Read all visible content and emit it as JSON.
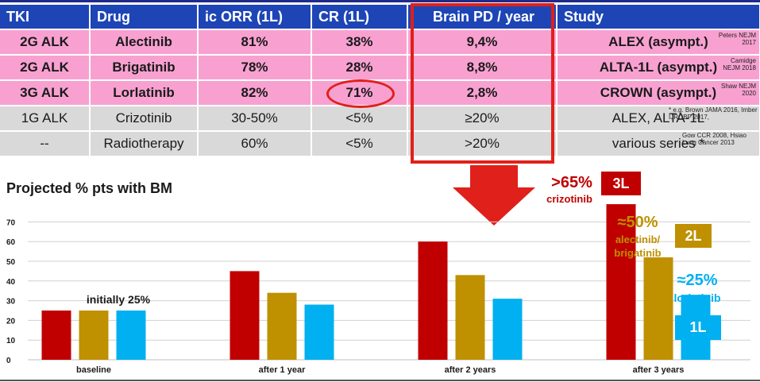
{
  "table": {
    "headers": [
      "TKI",
      "Drug",
      "ic ORR (1L)",
      "CR (1L)",
      "Brain PD / year",
      "Study"
    ],
    "rows": [
      {
        "tki": "2G ALK",
        "drug": "Alectinib",
        "orr": "81%",
        "cr": "38%",
        "pd": "9,4%",
        "study": "ALEX (asympt.)",
        "ref": "Peters NEJM 2017"
      },
      {
        "tki": "2G ALK",
        "drug": "Brigatinib",
        "orr": "78%",
        "cr": "28%",
        "pd": "8,8%",
        "study": "ALTA-1L (asympt.)",
        "ref": "Camidge NEJM 2018"
      },
      {
        "tki": "3G ALK",
        "drug": "Lorlatinib",
        "orr": "82%",
        "cr": "71%",
        "pd": "2,8%",
        "study": "CROWN (asympt.)",
        "ref": "Shaw NEJM 2020"
      },
      {
        "tki": "1G ALK",
        "drug": "Crizotinib",
        "orr": "30-50%",
        "cr": "<5%",
        "pd": "≥20%",
        "study": "ALEX, ALTA-1L",
        "ref": "* e.g. Brown JAMA 2016, Imber IJROBP 2017,"
      },
      {
        "tki": "--",
        "drug": "Radiotherapy",
        "orr": "60%",
        "cr": "<5%",
        "pd": ">20%",
        "study": "various series *",
        "ref": "Gow CCR 2008, Hsiao Lung Cancer 2013"
      }
    ]
  },
  "chart_title": "Projected % pts with BM",
  "chart_data": {
    "type": "bar",
    "title": "Projected % pts with BM",
    "categories": [
      "baseline",
      "after 1 year",
      "after 2 years",
      "after 3 years"
    ],
    "series": [
      {
        "name": "crizotinib",
        "color": "#c00000",
        "values": [
          25,
          45,
          60,
          79
        ]
      },
      {
        "name": "alectinib/ brigatinib",
        "color": "#bf9000",
        "values": [
          25,
          34,
          43,
          52
        ]
      },
      {
        "name": "lorlatinib",
        "color": "#00b0f0",
        "values": [
          25,
          28,
          31,
          33
        ]
      }
    ],
    "yticks": [
      0,
      10,
      20,
      30,
      40,
      50,
      60,
      70
    ],
    "ylim": [
      0,
      80
    ],
    "annotations": {
      "baseline": "initially 25%",
      "red_pct": ">65%",
      "red_label": "crizotinib",
      "red_tag": "3L",
      "gold_pct": "≈50%",
      "gold_label": "alectinib/ brigatinib",
      "gold_tag": "2L",
      "blue_pct": "≈25%",
      "blue_label": "lorlatinib",
      "blue_tag": "1L"
    }
  },
  "colors": {
    "header": "#1e45b6",
    "pink": "#f8a1d1",
    "grey": "#d9d9d9",
    "red": "#c00000",
    "gold": "#bf9000",
    "blue": "#00b0f0",
    "highlight": "#e0201a"
  }
}
